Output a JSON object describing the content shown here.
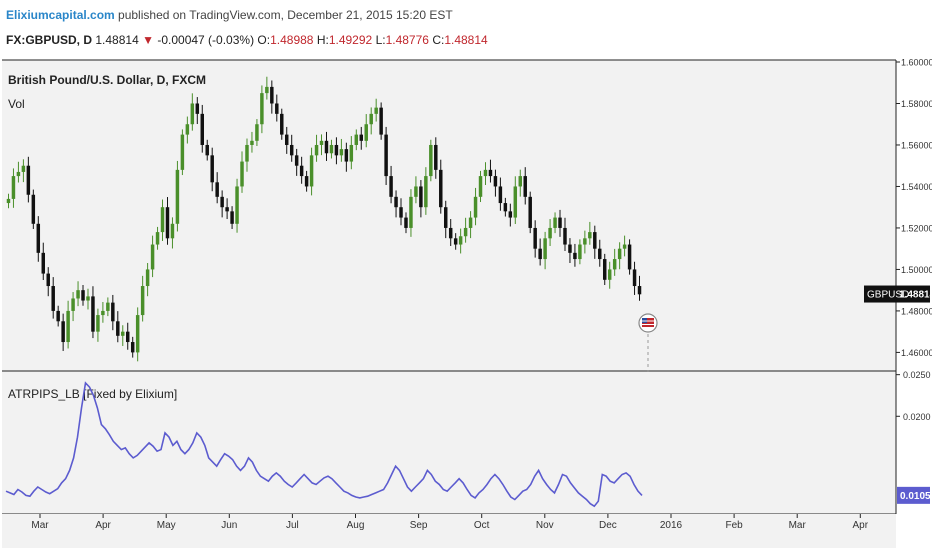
{
  "header": {
    "brand": "Elixiumcapital.com",
    "published": " published on TradingView.com, December 21, 2015 15:20 EST"
  },
  "symbol_line": {
    "symbol": "FX:GBPUSD,",
    "timeframe": "D",
    "last": "1.48814",
    "change": "-0.00047 (-0.03%)",
    "open_label": "O:",
    "open": "1.48988",
    "high_label": "H:",
    "high": "1.49292",
    "low_label": "L:",
    "low": "1.48776",
    "close_label": "C:",
    "close": "1.48814"
  },
  "colors": {
    "up_candle": "#4a8f2a",
    "down_candle": "#111111",
    "indicator_line": "#5c5ccf",
    "negative_red": "#c0272d",
    "brand_blue": "#2a86c9",
    "panel_bg": "#f2f2f2"
  },
  "chart_data": [
    {
      "type": "candlestick",
      "title": "British Pound/U.S. Dollar, D, FXCM",
      "subtitle": "Vol",
      "y_ticks": [
        "1.60000",
        "1.58000",
        "1.56000",
        "1.54000",
        "1.52000",
        "1.50000",
        "1.48000",
        "1.46000"
      ],
      "ylim": [
        1.452,
        1.6
      ],
      "last_price_label": "GBPUSD",
      "last_price": "1.48814",
      "close_path": {
        "start": "2015-02-23",
        "closes": [
          1.534,
          1.545,
          1.547,
          1.55,
          1.536,
          1.522,
          1.508,
          1.498,
          1.492,
          1.48,
          1.475,
          1.465,
          1.48,
          1.486,
          1.49,
          1.485,
          1.487,
          1.47,
          1.478,
          1.48,
          1.484,
          1.475,
          1.468,
          1.47,
          1.465,
          1.46,
          1.478,
          1.492,
          1.5,
          1.512,
          1.518,
          1.53,
          1.515,
          1.522,
          1.548,
          1.565,
          1.57,
          1.58,
          1.575,
          1.56,
          1.555,
          1.542,
          1.535,
          1.53,
          1.528,
          1.522,
          1.54,
          1.552,
          1.56,
          1.562,
          1.57,
          1.585,
          1.588,
          1.58,
          1.575,
          1.565,
          1.56,
          1.555,
          1.55,
          1.545,
          1.54,
          1.555,
          1.56,
          1.562,
          1.556,
          1.56,
          1.555,
          1.558,
          1.552,
          1.56,
          1.565,
          1.562,
          1.57,
          1.575,
          1.578,
          1.565,
          1.545,
          1.535,
          1.53,
          1.525,
          1.52,
          1.535,
          1.54,
          1.53,
          1.545,
          1.56,
          1.548,
          1.53,
          1.52,
          1.515,
          1.512,
          1.516,
          1.52,
          1.525,
          1.535,
          1.545,
          1.548,
          1.545,
          1.54,
          1.532,
          1.528,
          1.525,
          1.54,
          1.545,
          1.535,
          1.52,
          1.51,
          1.505,
          1.515,
          1.52,
          1.525,
          1.52,
          1.512,
          1.508,
          1.505,
          1.512,
          1.515,
          1.518,
          1.51,
          1.505,
          1.495,
          1.5,
          1.505,
          1.51,
          1.512,
          1.5,
          1.492,
          1.488
        ]
      }
    },
    {
      "type": "line",
      "title": "ATRPIPS_LB [Fixed by Elixium]",
      "y_ticks": [
        "0.0250",
        "0.0200"
      ],
      "ylim": [
        0.0085,
        0.0252
      ],
      "last_value_label": "0.0105",
      "series": [
        {
          "values": [
            0.011,
            0.0108,
            0.0106,
            0.0112,
            0.0109,
            0.0105,
            0.0104,
            0.011,
            0.0115,
            0.0112,
            0.0109,
            0.0107,
            0.011,
            0.0113,
            0.012,
            0.0125,
            0.0135,
            0.015,
            0.0175,
            0.021,
            0.024,
            0.0235,
            0.0225,
            0.021,
            0.019,
            0.0185,
            0.0178,
            0.017,
            0.0165,
            0.016,
            0.0162,
            0.0155,
            0.015,
            0.0153,
            0.0158,
            0.0163,
            0.0168,
            0.0164,
            0.0158,
            0.016,
            0.018,
            0.0175,
            0.0165,
            0.017,
            0.016,
            0.0155,
            0.016,
            0.0168,
            0.018,
            0.0175,
            0.0165,
            0.015,
            0.0145,
            0.014,
            0.0148,
            0.0155,
            0.0152,
            0.0148,
            0.014,
            0.0135,
            0.014,
            0.015,
            0.0145,
            0.0135,
            0.0128,
            0.0125,
            0.0122,
            0.0128,
            0.0132,
            0.0128,
            0.0122,
            0.0118,
            0.0115,
            0.012,
            0.0125,
            0.013,
            0.0125,
            0.012,
            0.0118,
            0.0122,
            0.0126,
            0.0128,
            0.0125,
            0.012,
            0.0115,
            0.011,
            0.0108,
            0.0105,
            0.0103,
            0.0102,
            0.0103,
            0.0104,
            0.0106,
            0.0108,
            0.011,
            0.0112,
            0.012,
            0.013,
            0.014,
            0.0135,
            0.0125,
            0.0115,
            0.011,
            0.0115,
            0.012,
            0.0125,
            0.0135,
            0.013,
            0.0122,
            0.0118,
            0.0112,
            0.011,
            0.0115,
            0.012,
            0.0125,
            0.012,
            0.0112,
            0.0105,
            0.0102,
            0.0108,
            0.0112,
            0.0118,
            0.0125,
            0.013,
            0.0125,
            0.0118,
            0.011,
            0.0103,
            0.01,
            0.0105,
            0.011,
            0.0112,
            0.0118,
            0.0128,
            0.0135,
            0.0125,
            0.0118,
            0.0112,
            0.0108,
            0.0118,
            0.013,
            0.0128,
            0.012,
            0.0114,
            0.0108,
            0.0104,
            0.01,
            0.0095,
            0.0092,
            0.0098,
            0.013,
            0.0128,
            0.0122,
            0.012,
            0.0125,
            0.013,
            0.0132,
            0.0128,
            0.0118,
            0.011,
            0.0105
          ]
        }
      ]
    }
  ],
  "x_axis": {
    "labels": [
      "Mar",
      "Apr",
      "May",
      "Jun",
      "Jul",
      "Aug",
      "Sep",
      "Oct",
      "Nov",
      "Dec",
      "2016",
      "Feb",
      "Mar",
      "Apr"
    ]
  }
}
